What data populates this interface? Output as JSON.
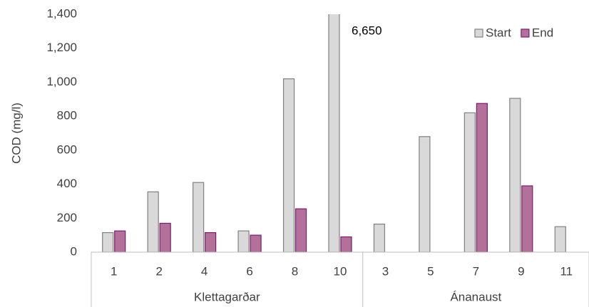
{
  "chart_data": {
    "type": "bar",
    "y_label": "COD (mg/l)",
    "groups": [
      {
        "name": "Klettagarðar",
        "categories": [
          "1",
          "2",
          "4",
          "6",
          "8",
          "10"
        ]
      },
      {
        "name": "Ánanaust",
        "categories": [
          "3",
          "5",
          "7",
          "9",
          "11"
        ]
      }
    ],
    "series": [
      {
        "name": "Start",
        "color": "#d9d9d9",
        "edgecolor": "#808080",
        "values": [
          115,
          355,
          410,
          125,
          1020,
          6650,
          165,
          680,
          820,
          905,
          150
        ],
        "value_labels": [
          null,
          null,
          null,
          null,
          null,
          "6,650",
          null,
          null,
          null,
          null,
          null
        ]
      },
      {
        "name": "End",
        "color": "#b3709b",
        "edgecolor": "#7a1f69",
        "values": [
          125,
          170,
          115,
          100,
          255,
          90,
          null,
          null,
          875,
          390,
          null
        ]
      }
    ],
    "ylim": [
      0,
      1400
    ],
    "yticks": [
      0,
      200,
      400,
      600,
      800,
      {
        "value": 1000,
        "label": "1,000"
      },
      {
        "value": 1200,
        "label": "1,200"
      },
      {
        "value": 1400,
        "label": "1,400"
      }
    ],
    "grid": false,
    "legend": "upper right"
  }
}
